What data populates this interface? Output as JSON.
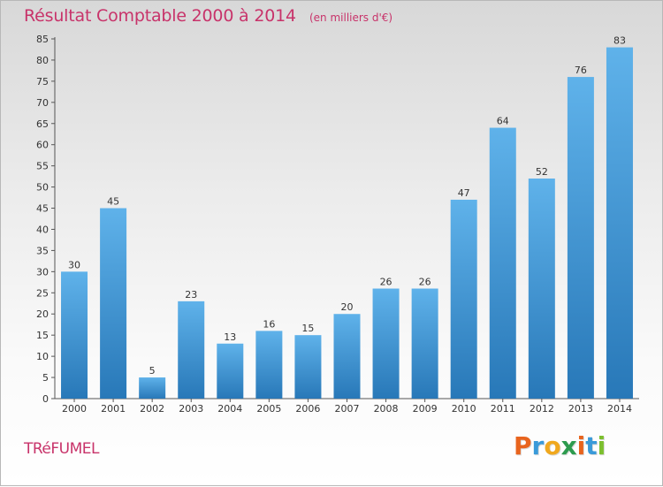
{
  "header": {
    "title": "Résultat Comptable 2000 à 2014",
    "unit": "(en milliers d'€)"
  },
  "commune": "TRéFUMEL",
  "logo": {
    "letters": [
      "P",
      "r",
      "o",
      "x",
      "i",
      "t",
      "i"
    ],
    "colors": [
      "#e8641e",
      "#3a9ad9",
      "#f0a81e",
      "#2d9b4e",
      "#e8641e",
      "#3a9ad9",
      "#7cbf2e"
    ]
  },
  "colors": {
    "bar_light": "#5fb2ea",
    "bar_dark": "#2878b8",
    "title": "#c8336a"
  },
  "chart_data": {
    "type": "bar",
    "title": "Résultat Comptable 2000 à 2014",
    "xlabel": "",
    "ylabel": "",
    "categories": [
      "2000",
      "2001",
      "2002",
      "2003",
      "2004",
      "2005",
      "2006",
      "2007",
      "2008",
      "2009",
      "2010",
      "2011",
      "2012",
      "2013",
      "2014"
    ],
    "values": [
      30,
      45,
      5,
      23,
      13,
      16,
      15,
      20,
      26,
      26,
      47,
      64,
      52,
      76,
      83
    ],
    "ylim": [
      0,
      85
    ],
    "yticks": [
      0,
      5,
      10,
      15,
      20,
      25,
      30,
      35,
      40,
      45,
      50,
      55,
      60,
      65,
      70,
      75,
      80,
      85
    ],
    "grid": false,
    "legend": "none"
  }
}
